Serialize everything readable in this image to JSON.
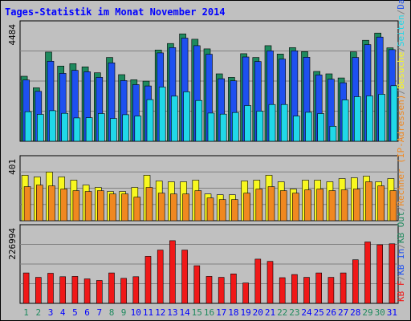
{
  "chart_data": {
    "type": "bar",
    "title": "Tages-Statistik im Monat November 2014",
    "days": [
      "1",
      "2",
      "3",
      "4",
      "5",
      "6",
      "7",
      "8",
      "9",
      "10",
      "11",
      "12",
      "13",
      "14",
      "15",
      "16",
      "17",
      "18",
      "19",
      "20",
      "21",
      "22",
      "23",
      "24",
      "25",
      "26",
      "27",
      "28",
      "29",
      "30",
      "31"
    ],
    "weekend_days": [
      "1",
      "2",
      "8",
      "9",
      "15",
      "16",
      "22",
      "23",
      "29",
      "30"
    ],
    "panels": [
      {
        "name": "requests",
        "ymax_label": "4484",
        "ylim": [
          0,
          4484
        ],
        "series": [
          {
            "name": "Anfragen",
            "color": "#1e8a5e",
            "values": [
              2420,
              1990,
              3320,
              2800,
              2890,
              2770,
              2550,
              3120,
              2480,
              2290,
              2240,
              3400,
              3640,
              4000,
              3800,
              3440,
              2510,
              2380,
              3260,
              3120,
              3560,
              3250,
              3490,
              3340,
              2600,
              2510,
              2360,
              3330,
              3760,
              4030,
              3480
            ]
          },
          {
            "name": "Dateien",
            "color": "#1e50f0",
            "values": [
              2280,
              1860,
              2980,
              2530,
              2640,
              2590,
              2380,
              2920,
              2260,
              2110,
              2060,
              3290,
              3490,
              3840,
              3560,
              3240,
              2330,
              2250,
              3140,
              2970,
              3370,
              3060,
              3370,
              3130,
              2470,
              2310,
              2180,
              3120,
              3600,
              3880,
              3410
            ]
          },
          {
            "name": "Seiten",
            "color": "#20d8e8",
            "values": [
              1100,
              1000,
              1140,
              1040,
              870,
              880,
              1030,
              850,
              990,
              940,
              1550,
              2020,
              1680,
              1840,
              1520,
              1050,
              1010,
              1070,
              1330,
              1120,
              1370,
              1370,
              940,
              1080,
              1030,
              560,
              1540,
              1660,
              1690,
              1750,
              2070
            ]
          }
        ]
      },
      {
        "name": "visits",
        "ymax_label": "401",
        "ylim": [
          0,
          401
        ],
        "series": [
          {
            "name": "Besuche",
            "color": "#f8f820",
            "values": [
              280,
              270,
              300,
              270,
              250,
              220,
              205,
              180,
              180,
              205,
              280,
              245,
              240,
              240,
              250,
              165,
              160,
              160,
              245,
              250,
              280,
              240,
              195,
              250,
              250,
              240,
              260,
              265,
              275,
              240,
              260
            ]
          },
          {
            "name": "Rechner (IP-Adressen)",
            "color": "#f08820",
            "values": [
              210,
              220,
              215,
              195,
              185,
              180,
              185,
              165,
              165,
              145,
              205,
              170,
              165,
              165,
              185,
              140,
              130,
              130,
              170,
              195,
              210,
              185,
              170,
              190,
              195,
              185,
              190,
              195,
              240,
              215,
              185
            ]
          }
        ]
      },
      {
        "name": "traffic",
        "ymax_label": "226994",
        "ylim": [
          0,
          251000
        ],
        "series": [
          {
            "name": "KB F",
            "color": "#f01818",
            "values": [
              97000,
              83000,
              96000,
              85000,
              86000,
              78000,
              73000,
              97000,
              80000,
              85000,
              150000,
              170000,
              200000,
              170000,
              120000,
              86000,
              83000,
              94000,
              65000,
              141000,
              134000,
              82000,
              92000,
              83000,
              97000,
              83000,
              97000,
              139000,
              196000,
              187000,
              190000
            ]
          }
        ]
      }
    ],
    "right_labels": [
      {
        "text": "KB F",
        "color": "#f01818"
      },
      {
        "text": "/",
        "color": "#808080"
      },
      {
        "text": "KB In",
        "color": "#1e50f0"
      },
      {
        "text": "/",
        "color": "#808080"
      },
      {
        "text": "KB Out",
        "color": "#1e8a5e"
      },
      {
        "text": "/",
        "color": "#808080"
      },
      {
        "text": "Rechner (IP-Adressen)",
        "color": "#f08820"
      },
      {
        "text": "/",
        "color": "#808080"
      },
      {
        "text": "Besuche",
        "color": "#f8f820"
      },
      {
        "text": "/",
        "color": "#808080"
      },
      {
        "text": "Seiten",
        "color": "#20d8e8"
      },
      {
        "text": "/",
        "color": "#808080"
      },
      {
        "text": "Dateien",
        "color": "#1e50f0"
      },
      {
        "text": "/",
        "color": "#808080"
      },
      {
        "text": "Anfragen",
        "color": "#1e8a5e"
      }
    ],
    "colors": {
      "background": "#c0c0c0",
      "plot_area": "#c0c0c0",
      "title": "#0000ff",
      "weekday_label": "#0000ff",
      "weekend_label": "#1e8a5e",
      "grid": "#808080"
    }
  }
}
